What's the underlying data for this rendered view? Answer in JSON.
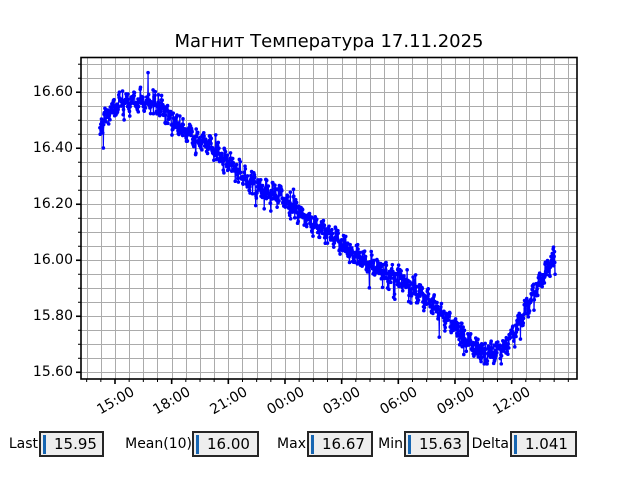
{
  "window": {
    "background": "#ffffff"
  },
  "chart_data": {
    "type": "line",
    "title": "Магнит Температура 17.11.2025",
    "x_tick_labels": [
      "15:00",
      "18:00",
      "21:00",
      "00:00",
      "03:00",
      "06:00",
      "09:00",
      "12:00"
    ],
    "x_tick_hours": [
      15,
      18,
      21,
      24,
      27,
      30,
      33,
      36
    ],
    "y_ticks": [
      15.6,
      15.8,
      16.0,
      16.2,
      16.4,
      16.6
    ],
    "y_tick_labels": [
      "15.60",
      "15.80",
      "16.00",
      "16.20",
      "16.40",
      "16.60"
    ],
    "xlim_hours": [
      13.2,
      39.46
    ],
    "ylim": [
      15.576,
      16.724
    ],
    "x_minor_step_hours": 0.75,
    "y_minor_step": 0.05,
    "grid": true,
    "grid_color": "#ababab",
    "line_color": "#0000ff",
    "marker": "circle",
    "start_hour": 14.2,
    "end_hour": 38.3,
    "sample_step_minutes": 1,
    "noise": {
      "sine_components": [
        [
          0.016,
          2.7,
          0.5
        ],
        [
          0.01,
          6.3,
          1.7
        ]
      ],
      "white_amplitude": 0.05,
      "dip_probability": 0.05,
      "dip_extra": [
        0.015,
        0.045
      ],
      "spike_probability": 0.03,
      "spike_extra": [
        0.01,
        0.03
      ],
      "seed": 20251117
    },
    "series": [
      {
        "name": "Магнит Температура",
        "trend_anchors": [
          [
            14.2,
            16.47
          ],
          [
            14.4,
            16.5
          ],
          [
            14.75,
            16.53
          ],
          [
            15.0,
            16.55
          ],
          [
            15.5,
            16.56
          ],
          [
            16.0,
            16.565
          ],
          [
            16.5,
            16.57
          ],
          [
            17.0,
            16.56
          ],
          [
            17.5,
            16.54
          ],
          [
            18.0,
            16.505
          ],
          [
            18.5,
            16.475
          ],
          [
            19.0,
            16.45
          ],
          [
            19.5,
            16.43
          ],
          [
            20.0,
            16.41
          ],
          [
            20.5,
            16.38
          ],
          [
            21.0,
            16.35
          ],
          [
            21.5,
            16.32
          ],
          [
            22.0,
            16.29
          ],
          [
            22.5,
            16.27
          ],
          [
            23.0,
            16.25
          ],
          [
            23.5,
            16.235
          ],
          [
            24.0,
            16.22
          ],
          [
            24.5,
            16.19
          ],
          [
            25.0,
            16.16
          ],
          [
            25.5,
            16.13
          ],
          [
            26.0,
            16.11
          ],
          [
            26.5,
            16.085
          ],
          [
            27.0,
            16.06
          ],
          [
            27.5,
            16.03
          ],
          [
            28.0,
            16.005
          ],
          [
            28.5,
            15.985
          ],
          [
            29.0,
            15.965
          ],
          [
            29.5,
            15.95
          ],
          [
            30.0,
            15.94
          ],
          [
            30.5,
            15.92
          ],
          [
            31.0,
            15.89
          ],
          [
            31.5,
            15.86
          ],
          [
            32.0,
            15.83
          ],
          [
            32.5,
            15.8
          ],
          [
            33.0,
            15.765
          ],
          [
            33.5,
            15.725
          ],
          [
            34.0,
            15.69
          ],
          [
            34.5,
            15.67
          ],
          [
            35.0,
            15.665
          ],
          [
            35.4,
            15.675
          ],
          [
            35.8,
            15.705
          ],
          [
            36.2,
            15.755
          ],
          [
            36.6,
            15.805
          ],
          [
            37.0,
            15.855
          ],
          [
            37.4,
            15.905
          ],
          [
            37.8,
            15.955
          ],
          [
            38.1,
            16.0
          ],
          [
            38.3,
            16.01
          ]
        ]
      }
    ],
    "extremes": {
      "max_at_hour": 16.75,
      "min_at_hour": 34.55
    },
    "stats": {
      "last": 15.95,
      "mean10": 16.0,
      "max": 16.67,
      "min": 15.63,
      "delta": 1.041
    }
  },
  "stats_bar": {
    "cursor_color": "#1766b2",
    "items": [
      {
        "label": "Last",
        "value": "15.95"
      },
      {
        "label": "Mean(10)",
        "value": "16.00"
      },
      {
        "label": "Max",
        "value": "16.67"
      },
      {
        "label": "Min",
        "value": "15.63"
      },
      {
        "label": "Delta",
        "value": "1.041"
      }
    ]
  }
}
